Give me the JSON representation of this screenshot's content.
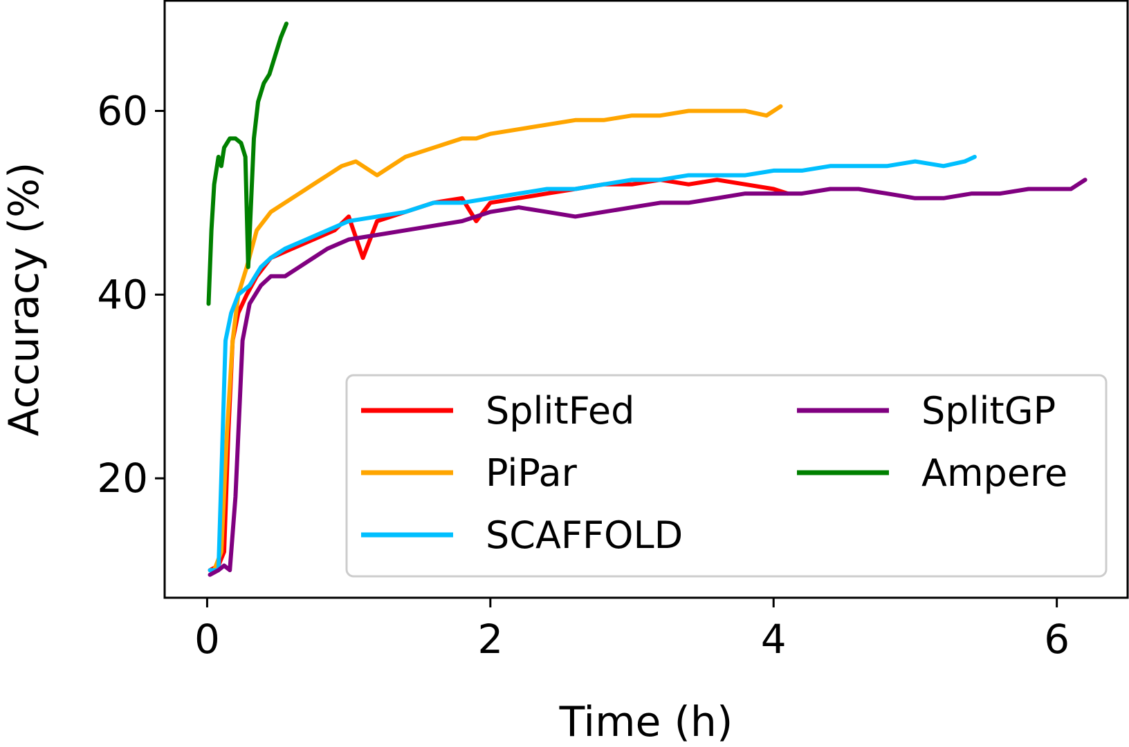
{
  "chart_data": {
    "type": "line",
    "title": "",
    "xlabel": "Time (h)",
    "ylabel": "Accuracy (%)",
    "xlim": [
      -0.3,
      6.5
    ],
    "ylim": [
      7,
      72
    ],
    "xticks": [
      0,
      2,
      4,
      6
    ],
    "xtick_labels": [
      "0",
      "2",
      "4",
      "6"
    ],
    "yticks": [
      20,
      40,
      60
    ],
    "ytick_labels": [
      "20",
      "40",
      "60"
    ],
    "grid": false,
    "legend_location": "lower-right",
    "legend_columns": 2,
    "series": [
      {
        "name": "SplitFed",
        "color": "#ff0000",
        "points": [
          [
            0.02,
            10
          ],
          [
            0.08,
            10.5
          ],
          [
            0.12,
            12
          ],
          [
            0.15,
            25
          ],
          [
            0.18,
            35
          ],
          [
            0.22,
            38
          ],
          [
            0.28,
            40
          ],
          [
            0.35,
            42
          ],
          [
            0.45,
            44
          ],
          [
            0.6,
            45
          ],
          [
            0.75,
            46
          ],
          [
            0.9,
            47
          ],
          [
            1.0,
            48.5
          ],
          [
            1.1,
            44
          ],
          [
            1.2,
            48
          ],
          [
            1.4,
            49
          ],
          [
            1.6,
            50
          ],
          [
            1.8,
            50.5
          ],
          [
            1.9,
            48
          ],
          [
            2.0,
            50
          ],
          [
            2.2,
            50.5
          ],
          [
            2.4,
            51
          ],
          [
            2.6,
            51.5
          ],
          [
            2.8,
            52
          ],
          [
            3.0,
            52
          ],
          [
            3.2,
            52.5
          ],
          [
            3.4,
            52
          ],
          [
            3.6,
            52.5
          ],
          [
            3.8,
            52
          ],
          [
            4.0,
            51.5
          ],
          [
            4.1,
            51
          ]
        ]
      },
      {
        "name": "PiPar",
        "color": "#ffa500",
        "points": [
          [
            0.05,
            10
          ],
          [
            0.1,
            12
          ],
          [
            0.14,
            25
          ],
          [
            0.18,
            35
          ],
          [
            0.22,
            40
          ],
          [
            0.28,
            43
          ],
          [
            0.35,
            47
          ],
          [
            0.45,
            49
          ],
          [
            0.55,
            50
          ],
          [
            0.65,
            51
          ],
          [
            0.75,
            52
          ],
          [
            0.85,
            53
          ],
          [
            0.95,
            54
          ],
          [
            1.05,
            54.5
          ],
          [
            1.2,
            53
          ],
          [
            1.3,
            54
          ],
          [
            1.4,
            55
          ],
          [
            1.5,
            55.5
          ],
          [
            1.6,
            56
          ],
          [
            1.7,
            56.5
          ],
          [
            1.8,
            57
          ],
          [
            1.9,
            57
          ],
          [
            2.0,
            57.5
          ],
          [
            2.2,
            58
          ],
          [
            2.4,
            58.5
          ],
          [
            2.6,
            59
          ],
          [
            2.8,
            59
          ],
          [
            3.0,
            59.5
          ],
          [
            3.2,
            59.5
          ],
          [
            3.4,
            60
          ],
          [
            3.6,
            60
          ],
          [
            3.8,
            60
          ],
          [
            3.95,
            59.5
          ],
          [
            4.05,
            60.5
          ]
        ]
      },
      {
        "name": "SCAFFOLD",
        "color": "#00bfff",
        "points": [
          [
            0.02,
            10
          ],
          [
            0.08,
            10
          ],
          [
            0.1,
            20
          ],
          [
            0.13,
            35
          ],
          [
            0.17,
            38
          ],
          [
            0.22,
            40
          ],
          [
            0.3,
            41
          ],
          [
            0.38,
            43
          ],
          [
            0.45,
            44
          ],
          [
            0.55,
            45
          ],
          [
            0.7,
            46
          ],
          [
            0.85,
            47
          ],
          [
            1.0,
            48
          ],
          [
            1.2,
            48.5
          ],
          [
            1.4,
            49
          ],
          [
            1.6,
            50
          ],
          [
            1.8,
            50
          ],
          [
            2.0,
            50.5
          ],
          [
            2.2,
            51
          ],
          [
            2.4,
            51.5
          ],
          [
            2.6,
            51.5
          ],
          [
            2.8,
            52
          ],
          [
            3.0,
            52.5
          ],
          [
            3.2,
            52.5
          ],
          [
            3.4,
            53
          ],
          [
            3.6,
            53
          ],
          [
            3.8,
            53
          ],
          [
            4.0,
            53.5
          ],
          [
            4.2,
            53.5
          ],
          [
            4.4,
            54
          ],
          [
            4.6,
            54
          ],
          [
            4.8,
            54
          ],
          [
            5.0,
            54.5
          ],
          [
            5.2,
            54
          ],
          [
            5.35,
            54.5
          ],
          [
            5.42,
            55
          ]
        ]
      },
      {
        "name": "SplitGP",
        "color": "#800080",
        "points": [
          [
            0.02,
            9.5
          ],
          [
            0.08,
            10
          ],
          [
            0.12,
            10.5
          ],
          [
            0.16,
            10
          ],
          [
            0.2,
            18
          ],
          [
            0.25,
            35
          ],
          [
            0.3,
            39
          ],
          [
            0.38,
            41
          ],
          [
            0.45,
            42
          ],
          [
            0.55,
            42
          ],
          [
            0.65,
            43
          ],
          [
            0.75,
            44
          ],
          [
            0.85,
            45
          ],
          [
            1.0,
            46
          ],
          [
            1.2,
            46.5
          ],
          [
            1.4,
            47
          ],
          [
            1.6,
            47.5
          ],
          [
            1.8,
            48
          ],
          [
            2.0,
            49
          ],
          [
            2.2,
            49.5
          ],
          [
            2.4,
            49
          ],
          [
            2.6,
            48.5
          ],
          [
            2.8,
            49
          ],
          [
            3.0,
            49.5
          ],
          [
            3.2,
            50
          ],
          [
            3.4,
            50
          ],
          [
            3.6,
            50.5
          ],
          [
            3.8,
            51
          ],
          [
            4.0,
            51
          ],
          [
            4.2,
            51
          ],
          [
            4.4,
            51.5
          ],
          [
            4.6,
            51.5
          ],
          [
            4.8,
            51
          ],
          [
            5.0,
            50.5
          ],
          [
            5.2,
            50.5
          ],
          [
            5.4,
            51
          ],
          [
            5.6,
            51
          ],
          [
            5.8,
            51.5
          ],
          [
            6.0,
            51.5
          ],
          [
            6.1,
            51.5
          ],
          [
            6.2,
            52.5
          ]
        ]
      },
      {
        "name": "Ampere",
        "color": "#008000",
        "points": [
          [
            0.01,
            39
          ],
          [
            0.03,
            47
          ],
          [
            0.05,
            52
          ],
          [
            0.08,
            55
          ],
          [
            0.1,
            54
          ],
          [
            0.12,
            56
          ],
          [
            0.16,
            57
          ],
          [
            0.2,
            57
          ],
          [
            0.24,
            56.5
          ],
          [
            0.27,
            55
          ],
          [
            0.29,
            43
          ],
          [
            0.31,
            50
          ],
          [
            0.33,
            57
          ],
          [
            0.36,
            61
          ],
          [
            0.4,
            63
          ],
          [
            0.44,
            64
          ],
          [
            0.48,
            66
          ],
          [
            0.52,
            68
          ],
          [
            0.56,
            69.5
          ]
        ]
      }
    ]
  }
}
